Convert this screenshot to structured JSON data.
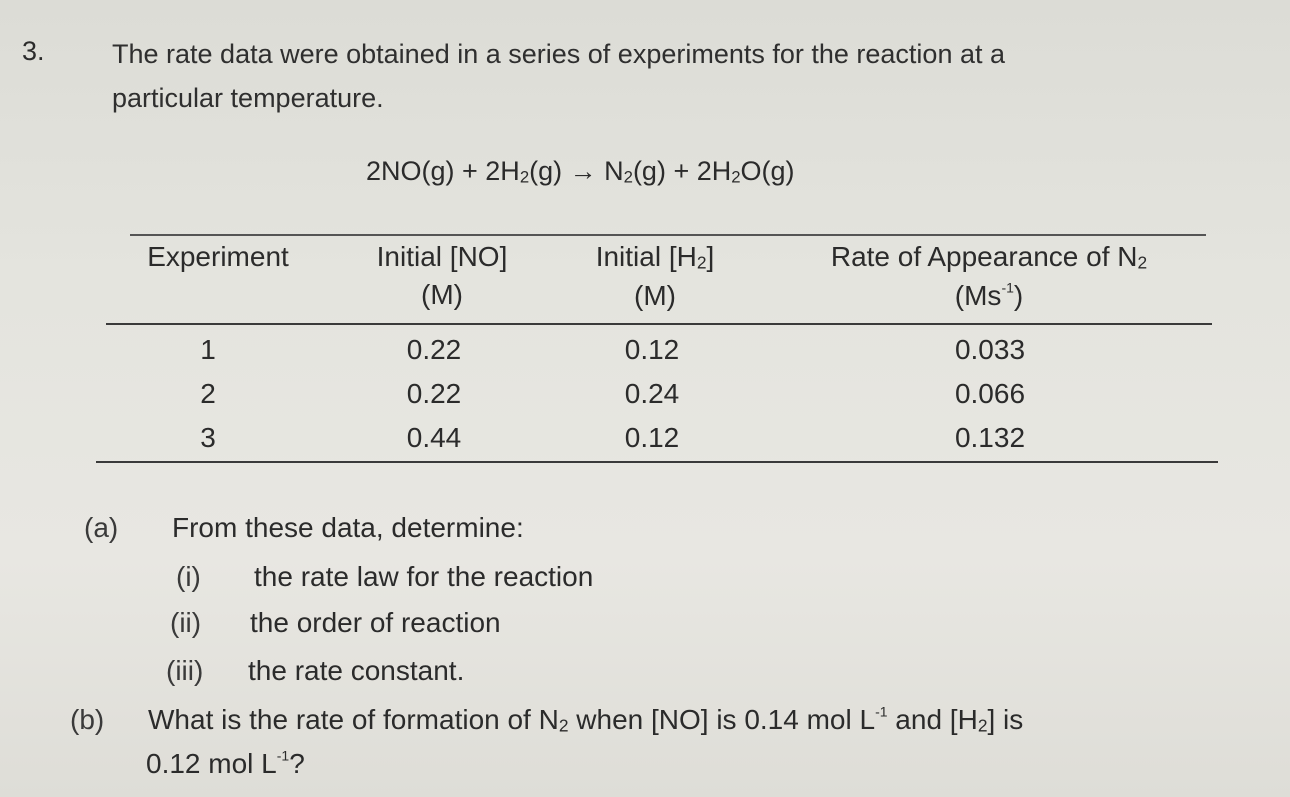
{
  "question": {
    "number": "3.",
    "intro_line1": "The rate data were obtained in a series of experiments for the reaction at a",
    "intro_line2": "particular temperature."
  },
  "equation": {
    "t1": "2NO(g) + 2H",
    "s1": "2",
    "t2": "(g) → N",
    "s2": "2",
    "t3": "(g) + 2H",
    "s3": "2",
    "t4": "O(g)"
  },
  "table": {
    "headers": {
      "experiment": "Experiment",
      "no_line1": "Initial [NO]",
      "no_line2": "(M)",
      "h2_line1_a": "Initial [H",
      "h2_line1_sub": "2",
      "h2_line1_b": "]",
      "h2_line2": "(M)",
      "rate_line1_a": "Rate of Appearance of N",
      "rate_line1_sub": "2",
      "rate_line2_a": "(Ms",
      "rate_line2_sup": "-1",
      "rate_line2_b": ")"
    },
    "rows": [
      {
        "experiment": "1",
        "no": "0.22",
        "h2": "0.12",
        "rate": "0.033"
      },
      {
        "experiment": "2",
        "no": "0.22",
        "h2": "0.24",
        "rate": "0.066"
      },
      {
        "experiment": "3",
        "no": "0.44",
        "h2": "0.12",
        "rate": "0.132"
      }
    ]
  },
  "part_a": {
    "label": "(a)",
    "text": "From these data, determine:",
    "items": [
      {
        "label": "(i)",
        "text": "the rate law for the reaction"
      },
      {
        "label": "(ii)",
        "text": "the order of reaction"
      },
      {
        "label": "(iii)",
        "text": "the rate constant."
      }
    ]
  },
  "part_b": {
    "label": "(b)",
    "t1": "What is the rate of formation of N",
    "s1": "2",
    "t2": " when [NO] is 0.14 mol L",
    "sup1": "-1",
    "t3": " and [H",
    "s2": "2",
    "t4": "] is",
    "line2_a": "0.12 mol L",
    "line2_sup": "-1",
    "line2_b": "?"
  }
}
